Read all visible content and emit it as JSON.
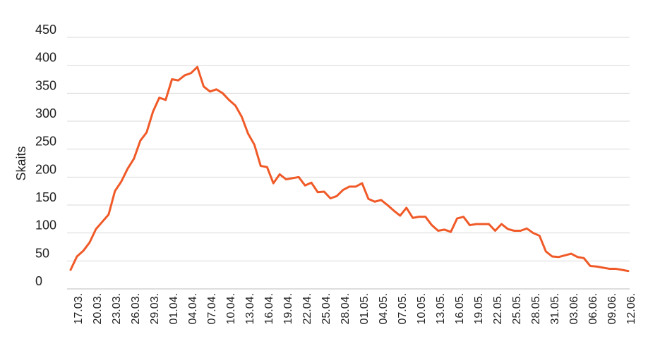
{
  "chart_data": {
    "type": "line",
    "ylabel": "Skaits",
    "xlabel": "",
    "ylim": [
      0,
      450
    ],
    "yticks": [
      0,
      50,
      100,
      150,
      200,
      250,
      300,
      350,
      400,
      450
    ],
    "grid": true,
    "line_color": "#f05a28",
    "x_tick_labels": [
      "17.03.",
      "20.03.",
      "23.03.",
      "26.03.",
      "29.03.",
      "01.04.",
      "04.04.",
      "07.04.",
      "10.04.",
      "13.04.",
      "16.04.",
      "19.04.",
      "22.04.",
      "25.04.",
      "28.04.",
      "01.05.",
      "04.05.",
      "07.05.",
      "10.05.",
      "13.05.",
      "16.05.",
      "19.05.",
      "22.05.",
      "25.05.",
      "28.05.",
      "31.05.",
      "03.06.",
      "06.06.",
      "09.06.",
      "12.06."
    ],
    "series": [
      {
        "values": [
          34,
          58,
          68,
          83,
          107,
          120,
          133,
          175,
          192,
          215,
          233,
          265,
          280,
          317,
          342,
          338,
          375,
          373,
          382,
          386,
          397,
          362,
          353,
          357,
          350,
          338,
          328,
          308,
          278,
          258,
          220,
          218,
          189,
          205,
          196,
          198,
          200,
          185,
          190,
          173,
          174,
          162,
          166,
          177,
          183,
          183,
          189,
          161,
          156,
          159,
          150,
          140,
          131,
          145,
          127,
          129,
          129,
          114,
          104,
          106,
          102,
          126,
          129,
          114,
          116,
          116,
          116,
          104,
          116,
          107,
          104,
          104,
          108,
          100,
          95,
          67,
          58,
          57,
          60,
          63,
          57,
          55,
          41,
          40,
          38,
          36,
          36,
          34,
          32
        ]
      }
    ]
  }
}
